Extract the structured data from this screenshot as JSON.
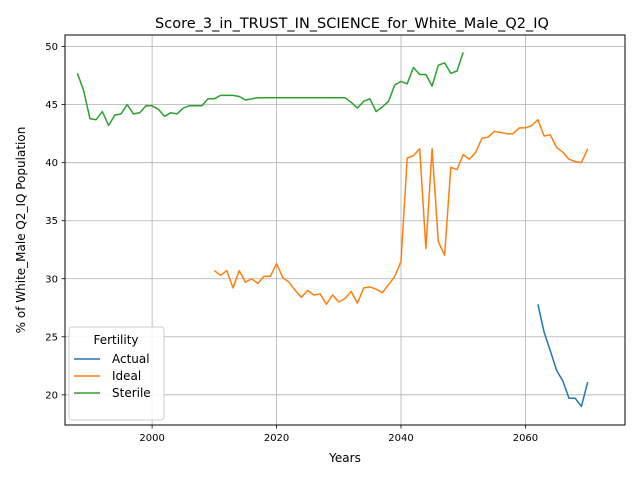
{
  "chart_data": {
    "type": "line",
    "title": "Score_3_in_TRUST_IN_SCIENCE_for_White_Male_Q2_IQ",
    "xlabel": "Years",
    "ylabel": "% of White_Male Q2_IQ Population",
    "xlim": [
      1986,
      2076
    ],
    "ylim": [
      17.4,
      51.0
    ],
    "xticks": [
      2000,
      2020,
      2040,
      2060
    ],
    "yticks": [
      20,
      25,
      30,
      35,
      40,
      45,
      50
    ],
    "grid": true,
    "legend": {
      "title": "Fertility",
      "position": "lower-left"
    },
    "series": [
      {
        "name": "Actual",
        "color": "#1f77b4",
        "x": [
          2062,
          2063,
          2064,
          2065,
          2066,
          2067,
          2068,
          2069,
          2070
        ],
        "y": [
          27.8,
          25.4,
          23.8,
          22.1,
          21.2,
          19.7,
          19.7,
          19.0,
          21.1
        ]
      },
      {
        "name": "Ideal",
        "color": "#ff7f0e",
        "x": [
          2010,
          2011,
          2012,
          2013,
          2014,
          2015,
          2016,
          2017,
          2018,
          2019,
          2020,
          2021,
          2022,
          2023,
          2024,
          2025,
          2026,
          2027,
          2028,
          2029,
          2030,
          2031,
          2032,
          2033,
          2034,
          2035,
          2036,
          2037,
          2038,
          2039,
          2040,
          2041,
          2042,
          2043,
          2044,
          2045,
          2046,
          2047,
          2048,
          2049,
          2050,
          2051,
          2052,
          2053,
          2054,
          2055,
          2056,
          2057,
          2058,
          2059,
          2060,
          2061,
          2062,
          2063,
          2064,
          2065,
          2066,
          2067,
          2068,
          2069,
          2070
        ],
        "y": [
          30.7,
          30.3,
          30.7,
          29.2,
          30.7,
          29.7,
          30.0,
          29.6,
          30.2,
          30.2,
          31.3,
          30.1,
          29.7,
          29.0,
          28.4,
          29.0,
          28.6,
          28.7,
          27.8,
          28.6,
          28.0,
          28.3,
          28.9,
          27.9,
          29.2,
          29.3,
          29.1,
          28.8,
          29.5,
          30.2,
          31.5,
          40.4,
          40.6,
          41.2,
          32.6,
          41.2,
          33.2,
          32.0,
          39.6,
          39.4,
          40.7,
          40.3,
          40.9,
          42.1,
          42.2,
          42.7,
          42.6,
          42.5,
          42.5,
          43.0,
          43.0,
          43.2,
          43.7,
          42.3,
          42.4,
          41.3,
          40.9,
          40.3,
          40.1,
          40.0,
          41.2
        ]
      },
      {
        "name": "Sterile",
        "color": "#2ca02c",
        "x": [
          1988,
          1989,
          1990,
          1991,
          1992,
          1993,
          1994,
          1995,
          1996,
          1997,
          1998,
          1999,
          2000,
          2001,
          2002,
          2003,
          2004,
          2005,
          2006,
          2007,
          2008,
          2009,
          2010,
          2011,
          2012,
          2013,
          2014,
          2015,
          2016,
          2017,
          2018,
          2019,
          2020,
          2021,
          2022,
          2023,
          2024,
          2025,
          2026,
          2027,
          2028,
          2029,
          2030,
          2031,
          2032,
          2033,
          2034,
          2035,
          2036,
          2037,
          2038,
          2039,
          2040,
          2041,
          2042,
          2043,
          2044,
          2045,
          2046,
          2047,
          2048,
          2049,
          2050
        ],
        "y": [
          47.7,
          46.2,
          43.8,
          43.7,
          44.4,
          43.2,
          44.1,
          44.2,
          45.0,
          44.2,
          44.3,
          44.9,
          44.9,
          44.6,
          44.0,
          44.3,
          44.2,
          44.7,
          44.9,
          44.9,
          44.9,
          45.5,
          45.5,
          45.8,
          45.8,
          45.8,
          45.7,
          45.4,
          45.5,
          45.6,
          45.6,
          45.6,
          45.6,
          45.6,
          45.6,
          45.6,
          45.6,
          45.6,
          45.6,
          45.6,
          45.6,
          45.6,
          45.6,
          45.6,
          45.2,
          44.7,
          45.3,
          45.5,
          44.4,
          44.8,
          45.3,
          46.7,
          47.0,
          46.8,
          48.2,
          47.6,
          47.6,
          46.6,
          48.4,
          48.6,
          47.7,
          47.9,
          49.5
        ]
      }
    ]
  }
}
